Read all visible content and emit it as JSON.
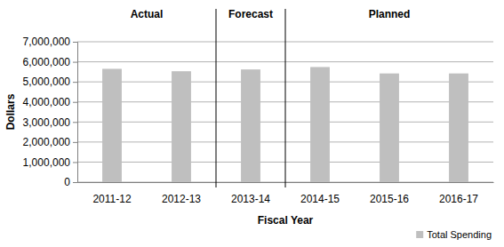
{
  "chart_data": {
    "type": "bar",
    "annotations": [
      "Actual",
      "Forecast",
      "Planned"
    ],
    "x_label": "Fiscal Year",
    "y_label": "Dollars",
    "categories": [
      "2011-12",
      "2012-13",
      "2013-14",
      "2014-15",
      "2015-16",
      "2016-17"
    ],
    "series": [
      {
        "name": "Total Spending",
        "color": "#bfbfbf",
        "values": [
          5650000,
          5530000,
          5620000,
          5740000,
          5420000,
          5420000
        ]
      }
    ],
    "ylim": [
      0,
      7000000
    ],
    "yticks": [
      0,
      {
        "value": 1000000,
        "label": "1,000,000"
      },
      {
        "value": 2000000,
        "label": "2,000,000"
      },
      {
        "value": 3000000,
        "label": "3,000,000"
      },
      {
        "value": 4000000,
        "label": "4,000,000"
      },
      {
        "value": 5000000,
        "label": "5,000,000"
      },
      {
        "value": 6000000,
        "label": "6,000,000"
      },
      {
        "value": 7000000,
        "label": "7,000,000"
      }
    ],
    "grid": true,
    "legend": "bottom-right"
  }
}
